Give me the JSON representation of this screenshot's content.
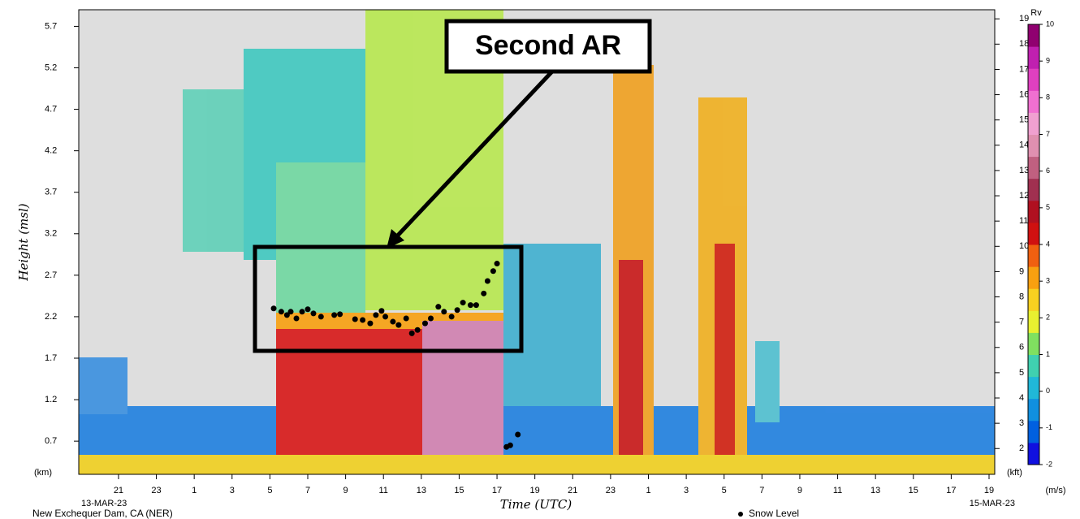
{
  "chart_data": {
    "type": "scatter",
    "annotation": "Second AR",
    "station": "New Exchequer Dam, CA (NER)",
    "xlabel": "Time (UTC)",
    "ylabel": "Height (msl)",
    "yunit": "(km)",
    "y2unit": "(kft)",
    "start_date": "13-MAR-23",
    "end_date": "15-MAR-23",
    "xlim": [
      18.9,
      67.3
    ],
    "xticks": [
      {
        "value": 21,
        "label": "21"
      },
      {
        "value": 23,
        "label": "23"
      },
      {
        "value": 25,
        "label": "1"
      },
      {
        "value": 27,
        "label": "3"
      },
      {
        "value": 29,
        "label": "5"
      },
      {
        "value": 31,
        "label": "7"
      },
      {
        "value": 33,
        "label": "9"
      },
      {
        "value": 35,
        "label": "11"
      },
      {
        "value": 37,
        "label": "13"
      },
      {
        "value": 39,
        "label": "15"
      },
      {
        "value": 41,
        "label": "17"
      },
      {
        "value": 43,
        "label": "19"
      },
      {
        "value": 45,
        "label": "21"
      },
      {
        "value": 47,
        "label": "23"
      },
      {
        "value": 49,
        "label": "1"
      },
      {
        "value": 51,
        "label": "3"
      },
      {
        "value": 53,
        "label": "5"
      },
      {
        "value": 55,
        "label": "7"
      },
      {
        "value": 57,
        "label": "9"
      },
      {
        "value": 59,
        "label": "11"
      },
      {
        "value": 61,
        "label": "13"
      },
      {
        "value": 63,
        "label": "15"
      },
      {
        "value": 65,
        "label": "17"
      },
      {
        "value": 67,
        "label": "19"
      }
    ],
    "ylim": [
      0.3,
      5.9
    ],
    "yticks": [
      0.7,
      1.2,
      1.7,
      2.2,
      2.7,
      3.2,
      3.7,
      4.2,
      4.7,
      5.2,
      5.7
    ],
    "y2lim": [
      0.98,
      19.36
    ],
    "y2ticks": [
      2,
      3,
      4,
      5,
      6,
      7,
      8,
      9,
      10,
      11,
      12,
      13,
      14,
      15,
      16,
      17,
      18,
      19
    ],
    "colorbar": {
      "label": "Rv",
      "unit": "(m/s)",
      "lim": [
        -2,
        10
      ],
      "ticks": [
        -2,
        -1,
        0,
        1,
        2,
        3,
        4,
        5,
        6,
        7,
        8,
        9,
        10
      ],
      "colors": [
        "#1010e0",
        "#0060e0",
        "#1090e0",
        "#20b8d8",
        "#40d0b0",
        "#80e060",
        "#e8f030",
        "#f8d020",
        "#f8a010",
        "#f06010",
        "#d01010",
        "#b01020",
        "#a03050",
        "#c06080",
        "#e090b0",
        "#f0a0d0",
        "#f070d0",
        "#e040c0",
        "#c020b0",
        "#900070"
      ]
    },
    "x": [
      29.2,
      29.6,
      29.9,
      30.1,
      30.4,
      30.7,
      31.0,
      31.3,
      31.7,
      32.4,
      32.7,
      33.5,
      33.9,
      34.3,
      34.6,
      34.9,
      35.1,
      35.5,
      35.8,
      36.2,
      36.5,
      36.8,
      37.2,
      37.5,
      37.9,
      38.2,
      38.6,
      38.9,
      39.2,
      39.6,
      39.9,
      40.3,
      40.5,
      40.8,
      41.0,
      41.5,
      41.7,
      42.1
    ],
    "series": [
      {
        "name": "Snow Level",
        "color": "#000000",
        "values": [
          2.3,
          2.26,
          2.22,
          2.26,
          2.18,
          2.26,
          2.29,
          2.24,
          2.2,
          2.22,
          2.23,
          2.17,
          2.16,
          2.12,
          2.22,
          2.27,
          2.2,
          2.14,
          2.1,
          2.18,
          2.0,
          2.04,
          2.12,
          2.18,
          2.32,
          2.26,
          2.2,
          2.28,
          2.37,
          2.34,
          2.34,
          2.48,
          2.63,
          2.75,
          2.84,
          0.63,
          0.65,
          0.78
        ]
      }
    ]
  }
}
